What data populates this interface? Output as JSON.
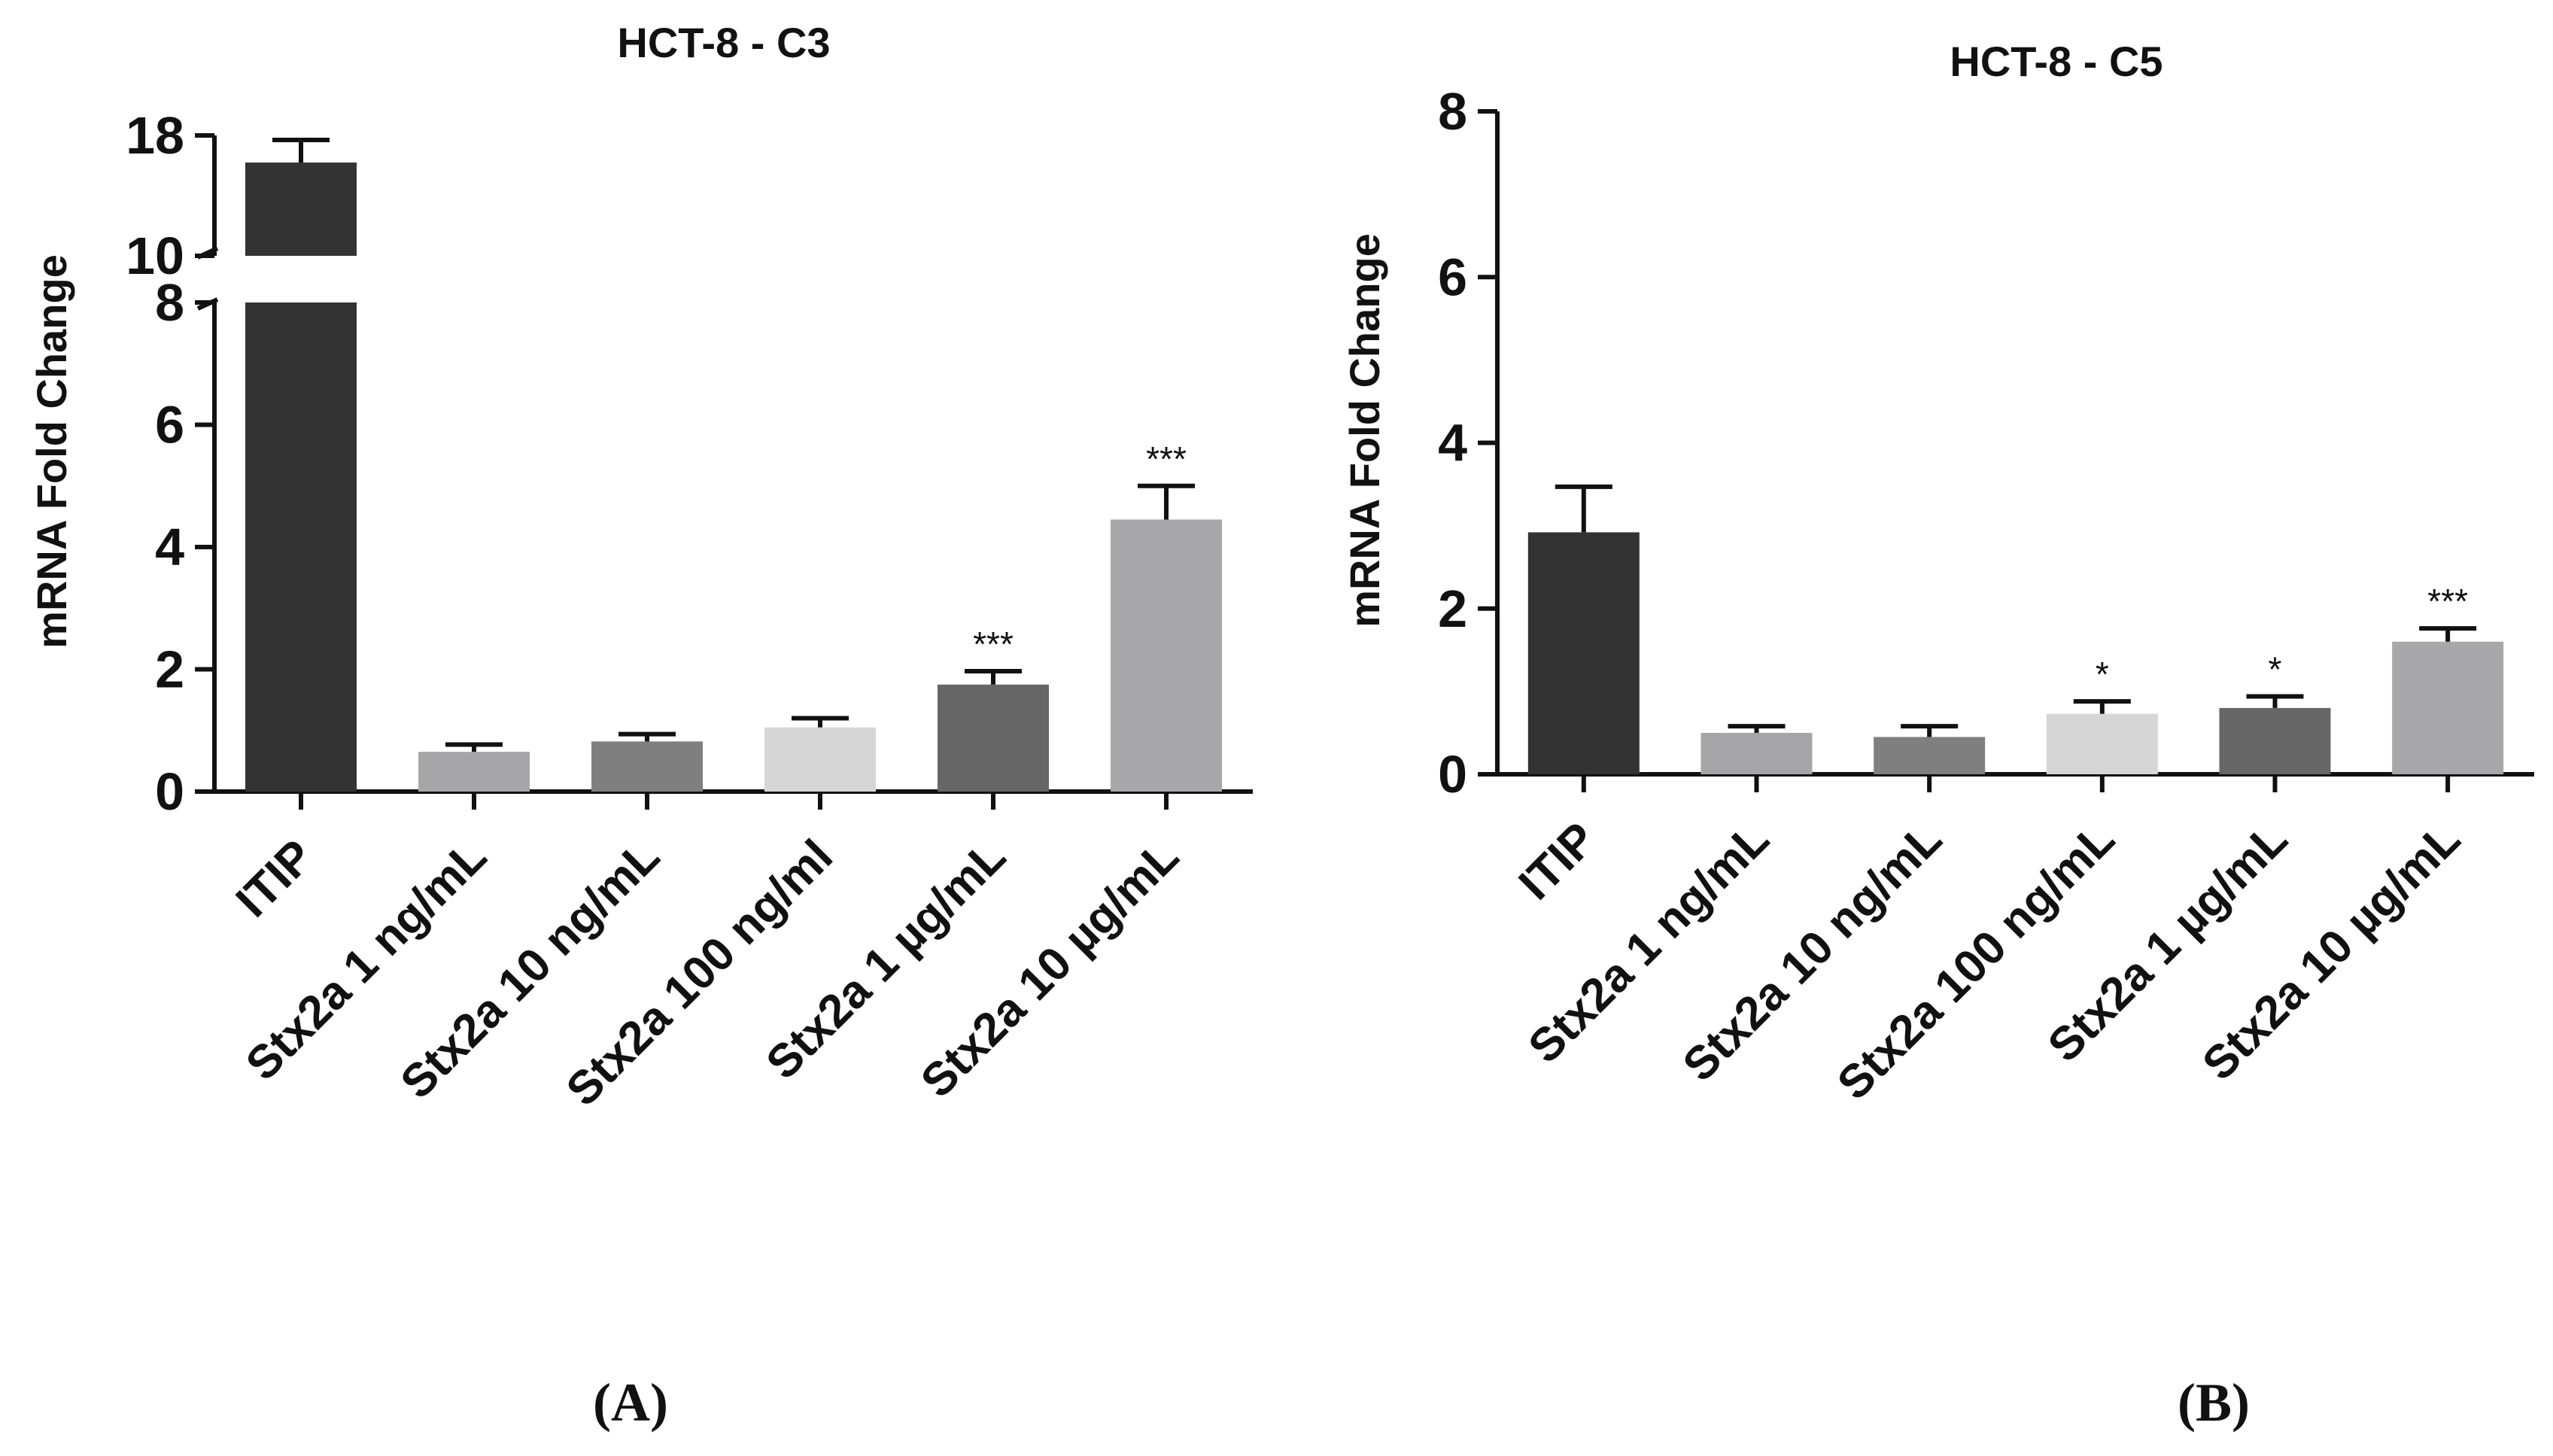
{
  "chart_data": [
    {
      "type": "bar",
      "panel": "(A)",
      "title": "HCT-8 - C3",
      "xlabel": "",
      "ylabel": "mRNA Fold Change",
      "categories": [
        "ITIP",
        "Stx2a 1 ng/mL",
        "Stx2a 10 ng/mL",
        "Stx2a 100 ng/ml",
        "Stx2a 1 µg/mL",
        "Stx2a 10 µg/mL"
      ],
      "values": [
        16.2,
        0.65,
        0.82,
        1.05,
        1.75,
        4.45
      ],
      "errors": [
        1.5,
        0.12,
        0.12,
        0.15,
        0.22,
        0.55
      ],
      "significance": [
        "",
        "",
        "",
        "",
        "***",
        "***"
      ],
      "colors": [
        "#333333",
        "#a6a6a8",
        "#7f7f7f",
        "#d6d6d6",
        "#666666",
        "#a8a8ab"
      ],
      "ylim": [
        0,
        18
      ],
      "axis_break": {
        "lower_range": [
          0,
          8
        ],
        "upper_range": [
          10,
          18
        ]
      },
      "yticks": [
        0,
        2,
        4,
        6,
        8,
        10,
        18
      ],
      "ytick_labels": [
        "0",
        "2",
        "4",
        "6",
        "8",
        "10",
        "18"
      ],
      "grid": false
    },
    {
      "type": "bar",
      "panel": "(B)",
      "title": "HCT-8 - C5",
      "xlabel": "",
      "ylabel": "mRNA Fold Change",
      "categories": [
        "ITIP",
        "Stx2a 1 ng/mL",
        "Stx2a 10 ng/mL",
        "Stx2a 100 ng/mL",
        "Stx2a 1 µg/mL",
        "Stx2a 10 µg/mL"
      ],
      "values": [
        2.92,
        0.5,
        0.45,
        0.73,
        0.8,
        1.6
      ],
      "errors": [
        0.55,
        0.08,
        0.13,
        0.15,
        0.14,
        0.16
      ],
      "significance": [
        "",
        "",
        "",
        "*",
        "*",
        "***"
      ],
      "colors": [
        "#333333",
        "#a6a6a8",
        "#7f7f7f",
        "#d6d6d6",
        "#666666",
        "#a8a8ab"
      ],
      "ylim": [
        0,
        8
      ],
      "yticks": [
        0,
        2,
        4,
        6,
        8
      ],
      "ytick_labels": [
        "0",
        "2",
        "4",
        "6",
        "8"
      ],
      "grid": false
    }
  ]
}
